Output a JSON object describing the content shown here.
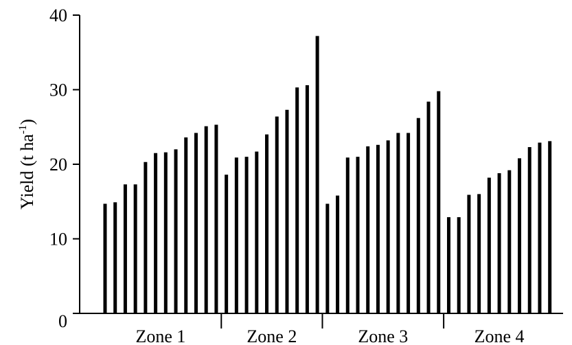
{
  "chart_data": {
    "type": "bar",
    "ylabel": {
      "text": "Yield (t ha",
      "superscript": "-1",
      "after": ")"
    },
    "ylim": [
      0,
      40
    ],
    "yticks": [
      0,
      10,
      20,
      30,
      40
    ],
    "color": "#000000",
    "groups": [
      {
        "name": "Zone 1",
        "values": [
          14.7,
          14.9,
          17.3,
          17.3,
          20.3,
          21.5,
          21.6,
          22.0,
          23.6,
          24.2,
          25.1,
          25.3
        ]
      },
      {
        "name": "Zone 2",
        "values": [
          18.6,
          20.9,
          21.0,
          21.7,
          24.0,
          26.4,
          27.3,
          30.3,
          30.6,
          37.2
        ]
      },
      {
        "name": "Zone 3",
        "values": [
          14.7,
          15.8,
          20.9,
          21.0,
          22.4,
          22.6,
          23.2,
          24.2,
          24.2,
          26.2,
          28.4,
          29.8
        ]
      },
      {
        "name": "Zone 4",
        "values": [
          12.9,
          12.9,
          15.9,
          16.0,
          18.2,
          18.8,
          19.2,
          20.8,
          22.3,
          22.9,
          23.1
        ]
      }
    ]
  }
}
